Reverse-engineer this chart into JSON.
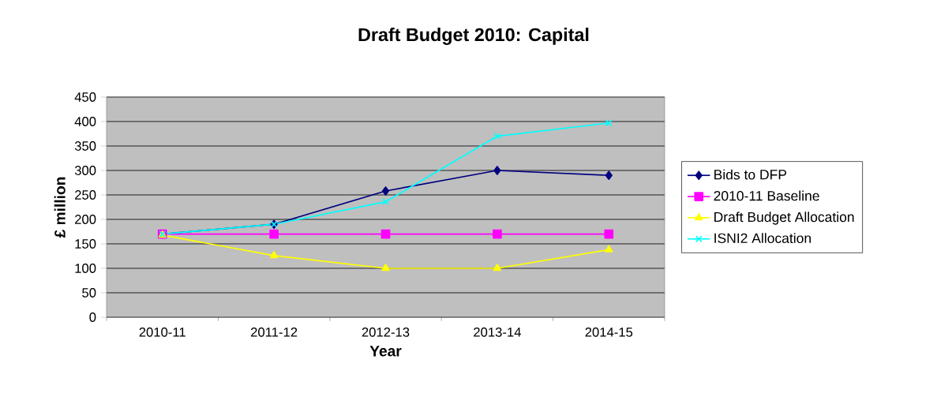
{
  "chart_data": {
    "type": "line",
    "title": "Draft Budget 2010: Capital",
    "xlabel": "Year",
    "ylabel": "£ million",
    "categories": [
      "2010-11",
      "2011-12",
      "2012-13",
      "2013-14",
      "2014-15"
    ],
    "series": [
      {
        "name": "Bids to DFP",
        "color": "#000080",
        "marker": "diamond",
        "values": [
          170,
          190,
          258,
          300,
          290
        ]
      },
      {
        "name": "2010-11 Baseline",
        "color": "#ff00ff",
        "marker": "square",
        "values": [
          170,
          170,
          170,
          170,
          170
        ]
      },
      {
        "name": "Draft Budget Allocation",
        "color": "#ffff00",
        "marker": "triangle",
        "values": [
          168,
          126,
          100,
          100,
          138
        ]
      },
      {
        "name": "ISNI2 Allocation",
        "color": "#00ffff",
        "marker": "cross",
        "values": [
          170,
          190,
          236,
          370,
          397
        ]
      }
    ],
    "ylim": [
      0,
      450
    ],
    "yticks": [
      0,
      50,
      100,
      150,
      200,
      250,
      300,
      350,
      400,
      450
    ],
    "grid": "y",
    "legend": "right",
    "line_style": "solid"
  }
}
